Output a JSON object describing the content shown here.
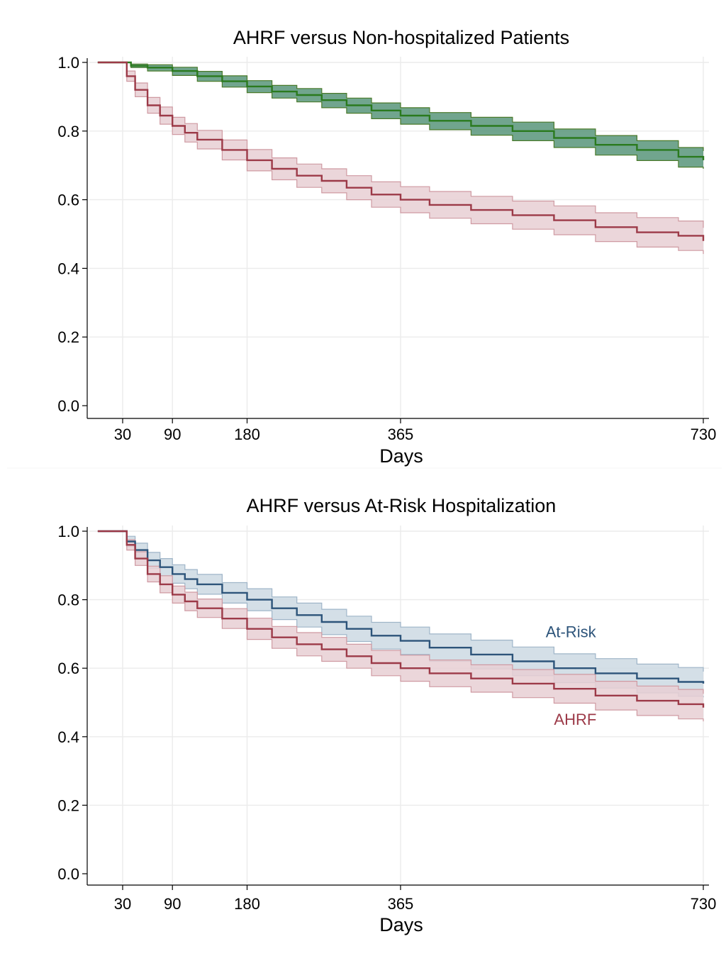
{
  "chart_data": [
    {
      "type": "line",
      "title": "AHRF versus Non-hospitalized Patients",
      "xlabel": "Days",
      "ylabel": "",
      "xlim": [
        0,
        730
      ],
      "ylim": [
        0,
        1
      ],
      "xticks": [
        30,
        90,
        180,
        365,
        730
      ],
      "yticks": [
        0,
        0.2,
        0.4,
        0.6,
        0.8,
        1
      ],
      "xtick_labels": [
        "30",
        "90",
        "180",
        "365",
        "730"
      ],
      "ytick_labels": [
        "0.0",
        "0.2",
        "0.4",
        "0.6",
        "0.8",
        "1.0"
      ],
      "grid": true,
      "series": [
        {
          "color": "#2a7a1e",
          "band_fill": "#58957a",
          "band_edge": "#4a7a2a",
          "x": [
            0,
            30,
            40,
            60,
            90,
            120,
            150,
            180,
            210,
            240,
            270,
            300,
            330,
            365,
            400,
            450,
            500,
            550,
            600,
            650,
            700,
            730
          ],
          "y": [
            1.0,
            1.0,
            0.99,
            0.985,
            0.975,
            0.96,
            0.945,
            0.93,
            0.915,
            0.905,
            0.89,
            0.875,
            0.86,
            0.845,
            0.83,
            0.815,
            0.8,
            0.78,
            0.76,
            0.745,
            0.725,
            0.715
          ],
          "lower": [
            1.0,
            1.0,
            0.985,
            0.975,
            0.962,
            0.945,
            0.928,
            0.912,
            0.896,
            0.885,
            0.868,
            0.852,
            0.836,
            0.82,
            0.804,
            0.788,
            0.772,
            0.752,
            0.73,
            0.714,
            0.695,
            0.69
          ],
          "upper": [
            1.0,
            1.0,
            0.995,
            0.993,
            0.986,
            0.974,
            0.961,
            0.947,
            0.933,
            0.924,
            0.91,
            0.896,
            0.882,
            0.868,
            0.854,
            0.84,
            0.826,
            0.806,
            0.787,
            0.772,
            0.752,
            0.742
          ]
        },
        {
          "color": "#9c3a48",
          "band_fill": "#e7cfd3",
          "band_edge": "#cf9aa2",
          "x": [
            0,
            30,
            35,
            45,
            60,
            75,
            90,
            105,
            120,
            150,
            180,
            210,
            240,
            270,
            300,
            330,
            365,
            400,
            450,
            500,
            550,
            600,
            650,
            700,
            730
          ],
          "y": [
            1.0,
            1.0,
            0.96,
            0.92,
            0.875,
            0.845,
            0.815,
            0.795,
            0.775,
            0.745,
            0.715,
            0.69,
            0.67,
            0.655,
            0.635,
            0.615,
            0.6,
            0.585,
            0.57,
            0.555,
            0.54,
            0.52,
            0.505,
            0.495,
            0.48
          ],
          "lower": [
            1.0,
            1.0,
            0.945,
            0.9,
            0.852,
            0.82,
            0.79,
            0.768,
            0.748,
            0.716,
            0.684,
            0.658,
            0.636,
            0.62,
            0.6,
            0.578,
            0.562,
            0.546,
            0.53,
            0.514,
            0.498,
            0.478,
            0.462,
            0.452,
            0.442
          ],
          "upper": [
            1.0,
            1.0,
            0.975,
            0.94,
            0.898,
            0.87,
            0.84,
            0.822,
            0.802,
            0.774,
            0.746,
            0.722,
            0.704,
            0.69,
            0.67,
            0.652,
            0.638,
            0.624,
            0.61,
            0.596,
            0.582,
            0.562,
            0.548,
            0.538,
            0.518
          ]
        }
      ]
    },
    {
      "type": "line",
      "title": "AHRF versus At-Risk Hospitalization",
      "xlabel": "Days",
      "ylabel": "",
      "xlim": [
        0,
        730
      ],
      "ylim": [
        0,
        1
      ],
      "xticks": [
        30,
        90,
        180,
        365,
        730
      ],
      "yticks": [
        0,
        0.2,
        0.4,
        0.6,
        0.8,
        1
      ],
      "xtick_labels": [
        "30",
        "90",
        "180",
        "365",
        "730"
      ],
      "ytick_labels": [
        "0.0",
        "0.2",
        "0.4",
        "0.6",
        "0.8",
        "1.0"
      ],
      "grid": true,
      "series": [
        {
          "name": "At-Risk",
          "color": "#2d547a",
          "band_fill": "#ccd9e3",
          "band_edge": "#9fb5c8",
          "label_pos": [
            540,
            0.69
          ],
          "x": [
            0,
            30,
            35,
            45,
            60,
            75,
            90,
            105,
            120,
            150,
            180,
            210,
            240,
            270,
            300,
            330,
            365,
            400,
            450,
            500,
            550,
            600,
            650,
            700,
            730
          ],
          "y": [
            1.0,
            1.0,
            0.97,
            0.945,
            0.915,
            0.895,
            0.875,
            0.86,
            0.845,
            0.82,
            0.8,
            0.775,
            0.755,
            0.735,
            0.715,
            0.695,
            0.68,
            0.66,
            0.64,
            0.62,
            0.6,
            0.585,
            0.57,
            0.56,
            0.555
          ],
          "lower": [
            1.0,
            1.0,
            0.955,
            0.925,
            0.892,
            0.87,
            0.848,
            0.832,
            0.816,
            0.79,
            0.768,
            0.742,
            0.72,
            0.698,
            0.678,
            0.656,
            0.64,
            0.62,
            0.598,
            0.578,
            0.558,
            0.542,
            0.528,
            0.518,
            0.515
          ],
          "upper": [
            1.0,
            1.0,
            0.985,
            0.965,
            0.938,
            0.92,
            0.902,
            0.888,
            0.874,
            0.85,
            0.832,
            0.808,
            0.79,
            0.772,
            0.752,
            0.734,
            0.72,
            0.7,
            0.682,
            0.662,
            0.642,
            0.628,
            0.612,
            0.602,
            0.59
          ]
        },
        {
          "name": "AHRF",
          "color": "#9c3a48",
          "band_fill": "#e7cfd3",
          "band_edge": "#cf9aa2",
          "label_pos": [
            550,
            0.435
          ],
          "x": [
            0,
            30,
            35,
            45,
            60,
            75,
            90,
            105,
            120,
            150,
            180,
            210,
            240,
            270,
            300,
            330,
            365,
            400,
            450,
            500,
            550,
            600,
            650,
            700,
            730
          ],
          "y": [
            1.0,
            1.0,
            0.96,
            0.92,
            0.875,
            0.845,
            0.815,
            0.795,
            0.775,
            0.745,
            0.715,
            0.69,
            0.67,
            0.655,
            0.635,
            0.615,
            0.6,
            0.585,
            0.57,
            0.555,
            0.54,
            0.52,
            0.505,
            0.495,
            0.485
          ],
          "lower": [
            1.0,
            1.0,
            0.945,
            0.9,
            0.852,
            0.82,
            0.79,
            0.768,
            0.748,
            0.716,
            0.684,
            0.658,
            0.636,
            0.62,
            0.6,
            0.578,
            0.562,
            0.546,
            0.53,
            0.514,
            0.498,
            0.478,
            0.462,
            0.452,
            0.445
          ],
          "upper": [
            1.0,
            1.0,
            0.975,
            0.94,
            0.898,
            0.87,
            0.84,
            0.822,
            0.802,
            0.774,
            0.746,
            0.722,
            0.704,
            0.69,
            0.67,
            0.652,
            0.638,
            0.624,
            0.61,
            0.596,
            0.582,
            0.562,
            0.548,
            0.538,
            0.525
          ]
        }
      ]
    }
  ]
}
